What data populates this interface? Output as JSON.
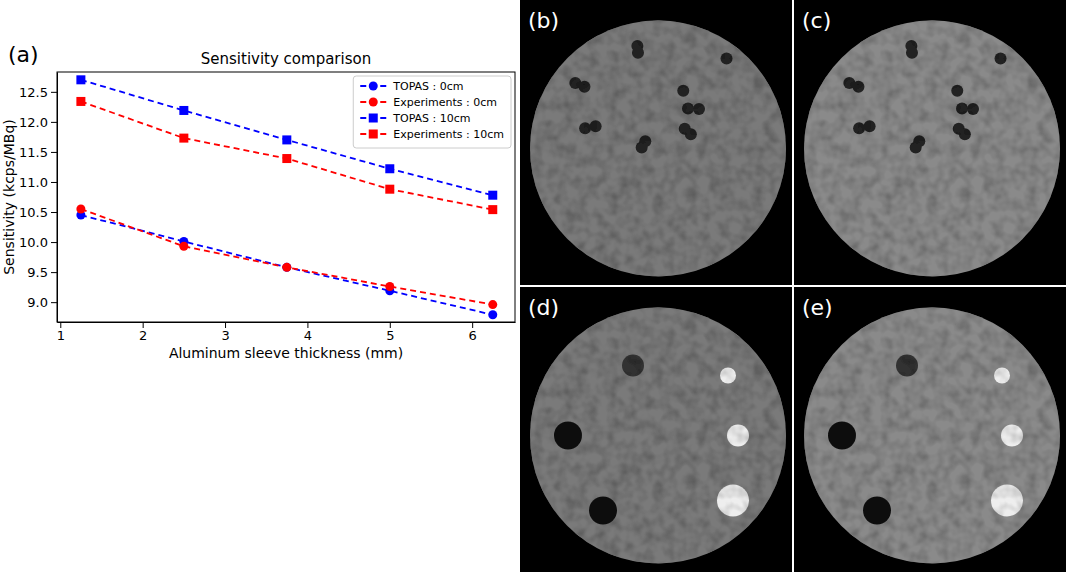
{
  "chart_data": {
    "type": "line",
    "title": "Sensitivity comparison",
    "x_label": "Aluminum sleeve thickness (mm)",
    "y_label": "Sensitivity (kcps/MBq)",
    "x": [
      1.25,
      2.5,
      3.75,
      5,
      6.25
    ],
    "series": [
      {
        "name": "TOPAS : 0cm",
        "color": "#0000ff",
        "marker": "circle",
        "line_style": "dashed",
        "values": [
          10.45,
          10.01,
          9.58,
          9.19,
          8.79
        ]
      },
      {
        "name": "Experiments : 0cm",
        "color": "#ff0000",
        "marker": "circle",
        "line_style": "dashed",
        "values": [
          10.55,
          9.93,
          9.58,
          9.26,
          8.96
        ]
      },
      {
        "name": "TOPAS : 10cm",
        "color": "#0000ff",
        "marker": "square",
        "line_style": "dashed",
        "values": [
          12.7,
          12.19,
          11.7,
          11.22,
          10.78
        ]
      },
      {
        "name": "Experiments : 10cm",
        "color": "#ff0000",
        "marker": "square",
        "line_style": "dashed",
        "values": [
          12.34,
          11.73,
          11.39,
          10.88,
          10.54
        ]
      }
    ],
    "xlim": [
      0.96,
      6.52
    ],
    "xticks": [
      1,
      2,
      3,
      4,
      5,
      6
    ],
    "ylim": [
      8.67,
      12.83
    ],
    "yticks": [
      {
        "value": 9,
        "label": "9.0"
      },
      {
        "value": 9.5,
        "label": "9.5"
      },
      {
        "value": 10,
        "label": "10.0"
      },
      {
        "value": 10.5,
        "label": "10.5"
      },
      {
        "value": 11,
        "label": "11.0"
      },
      {
        "value": 11.5,
        "label": "11.5"
      },
      {
        "value": 12,
        "label": "12.0"
      },
      {
        "value": 12.5,
        "label": "12.5"
      }
    ],
    "grid": false,
    "legend": "upper right"
  },
  "panel_labels": [
    "(a)",
    "(b)",
    "(c)",
    "(d)",
    "(e)"
  ]
}
